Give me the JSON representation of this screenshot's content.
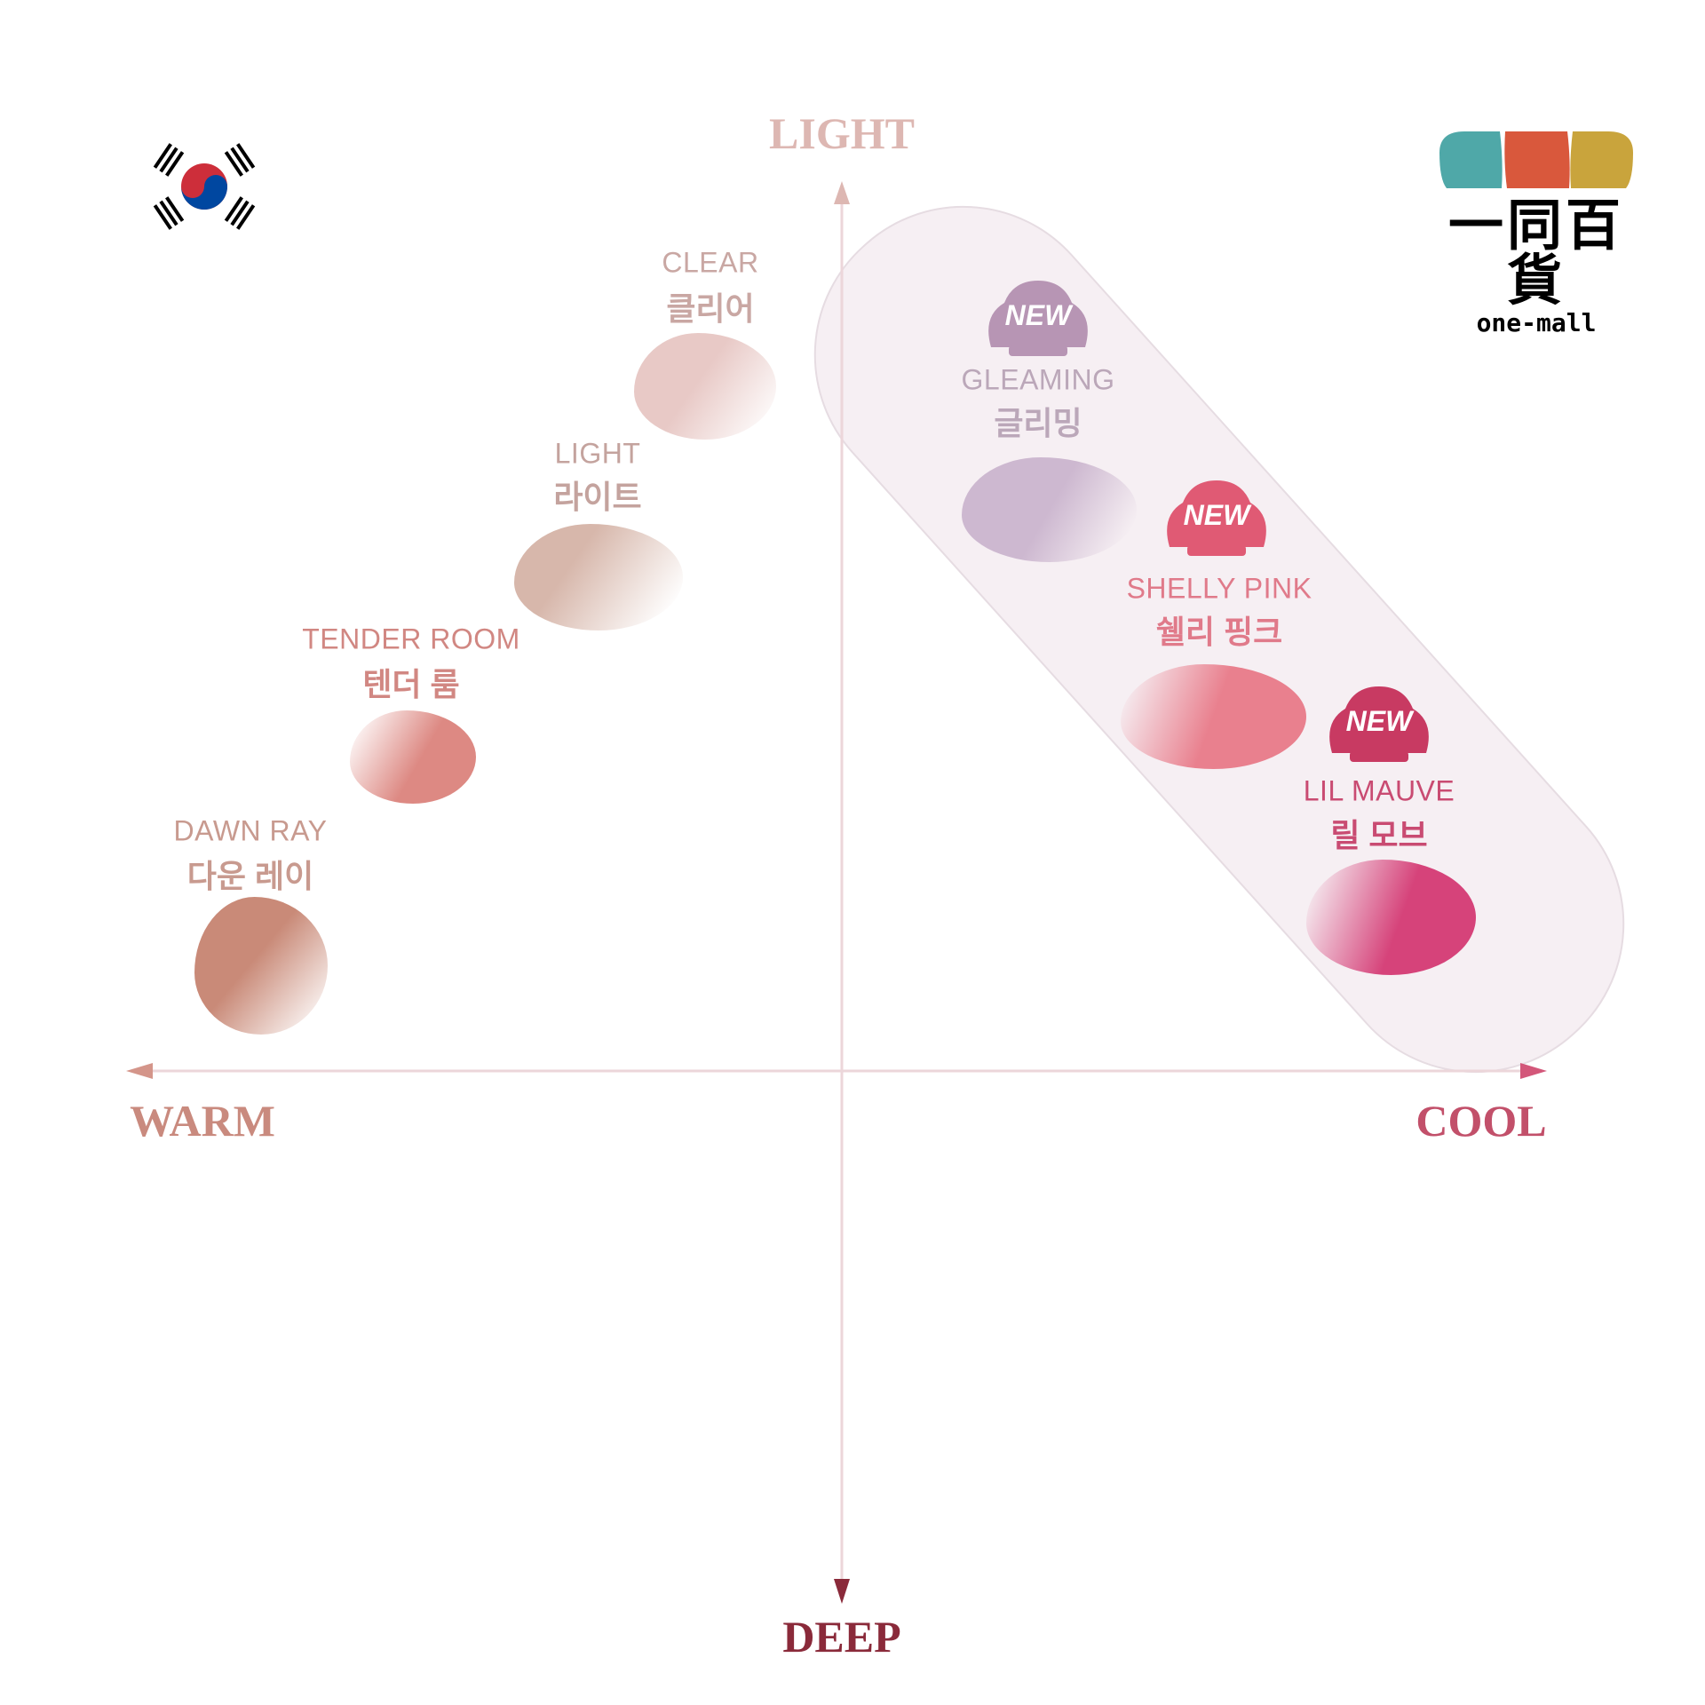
{
  "axes": {
    "top": "LIGHT",
    "bottom": "DEEP",
    "left": "WARM",
    "right": "COOL"
  },
  "colors": {
    "axis_line": "#e8cdd2",
    "light_label": "#d9b3ad",
    "deep_label": "#8a2a3a",
    "warm_label": "#c98a7e",
    "cool_label": "#c2506a"
  },
  "flag": {
    "icon": "south-korea-flag-icon"
  },
  "logo": {
    "text_cn": "一同百貨",
    "text_en": "one-mall",
    "colors": [
      "#4fa8a8",
      "#d9583c",
      "#c9a43c"
    ]
  },
  "new_badge": "NEW",
  "shades": [
    {
      "en": "CLEAR",
      "ko": "클리어",
      "color": "#e8c9c6",
      "text_color": "#c9a7a3",
      "is_new": false,
      "quadrant": "warm-light"
    },
    {
      "en": "LIGHT",
      "ko": "라이트",
      "color": "#d7b7ab",
      "text_color": "#c4a39e",
      "is_new": false,
      "quadrant": "warm-light"
    },
    {
      "en": "TENDER ROOM",
      "ko": "텐더 룸",
      "color": "#dd8983",
      "text_color": "#d18782",
      "is_new": false,
      "quadrant": "warm-light"
    },
    {
      "en": "DAWN RAY",
      "ko": "다운 레이",
      "color": "#c98a78",
      "text_color": "#c89a8f",
      "is_new": false,
      "quadrant": "warm-light"
    },
    {
      "en": "GLEAMING",
      "ko": "글리밍",
      "color": "#cdb8d0",
      "text_color": "#bba7b9",
      "badge_color": "#b795b4",
      "is_new": true,
      "quadrant": "cool-light"
    },
    {
      "en": "SHELLY PINK",
      "ko": "쉘리 핑크",
      "color": "#e9808e",
      "text_color": "#e07a8a",
      "badge_color": "#e05a74",
      "is_new": true,
      "quadrant": "cool-light"
    },
    {
      "en": "LIL MAUVE",
      "ko": "릴 모브",
      "color": "#d6437a",
      "text_color": "#c94b72",
      "badge_color": "#c83a62",
      "is_new": true,
      "quadrant": "cool-light"
    }
  ]
}
